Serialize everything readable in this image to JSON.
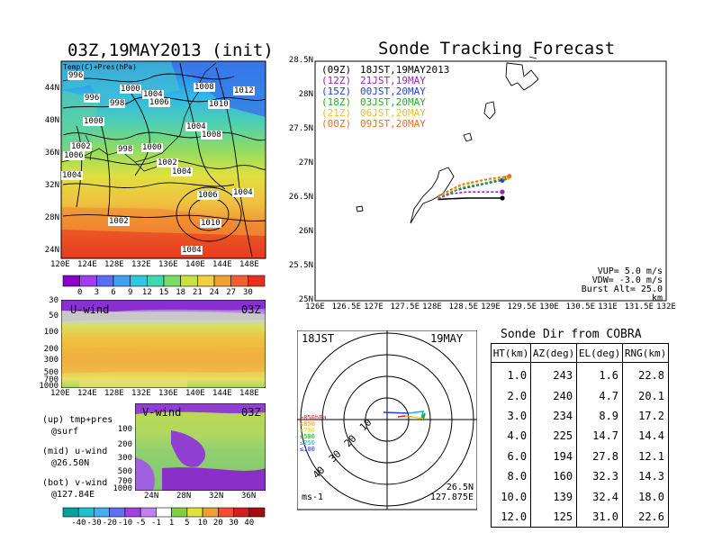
{
  "left": {
    "map_title": "03Z,19MAY2013 (init)",
    "map_label": "Temp(C)+Pres(hPa)",
    "isobars": [
      "996",
      "996",
      "1000",
      "1004",
      "998",
      "1006",
      "1008",
      "1012",
      "1010",
      "1004",
      "1008",
      "1000",
      "1002",
      "998",
      "1000",
      "1002",
      "1004",
      "1006",
      "1004",
      "1010",
      "1002",
      "1004",
      "1006",
      "1004"
    ],
    "lat_ticks": [
      "44N",
      "40N",
      "36N",
      "32N",
      "28N",
      "24N"
    ],
    "lon_ticks": [
      "120E",
      "124E",
      "128E",
      "132E",
      "136E",
      "140E",
      "144E",
      "148E"
    ],
    "colorbar_top": [
      "0",
      "3",
      "6",
      "9",
      "12",
      "15",
      "18",
      "21",
      "24",
      "27",
      "30"
    ],
    "colorbar_top_colors": [
      "#8a00c8",
      "#a13cf0",
      "#5a6cf0",
      "#3fa0f0",
      "#30c8e0",
      "#40d8b0",
      "#7adc64",
      "#c8e040",
      "#f0d040",
      "#f0a030",
      "#f06030",
      "#e83020"
    ],
    "uwind": {
      "label": "U-wind",
      "time": "03Z",
      "y_ticks": [
        "30",
        "50",
        "100",
        "200",
        "300",
        "500",
        "700",
        "1000"
      ],
      "x_ticks": [
        "120E",
        "124E",
        "128E",
        "132E",
        "136E",
        "140E",
        "144E",
        "148E"
      ]
    },
    "vwind": {
      "label": "V-wind",
      "time": "03Z",
      "y_ticks": [
        "100",
        "200",
        "300",
        "500",
        "700",
        "1000"
      ],
      "x_ticks": [
        "24N",
        "28N",
        "32N",
        "36N"
      ]
    },
    "notes": [
      {
        "a": "(up) tmp+pres",
        "b": "@surf"
      },
      {
        "a": "(mid) u-wind",
        "b": "@26.50N"
      },
      {
        "a": "(bot) v-wind",
        "b": "@127.84E"
      }
    ],
    "colorbar_bottom": [
      "-40",
      "-30",
      "-20",
      "-10",
      "-5",
      "-1",
      "1",
      "5",
      "10",
      "20",
      "30",
      "40"
    ],
    "colorbar_bottom_colors": [
      "#00a0a0",
      "#20c0d0",
      "#40b0f0",
      "#6070f0",
      "#a040e0",
      "#c080f0",
      "#ffffff",
      "#80d040",
      "#e0e040",
      "#f0a030",
      "#f05030",
      "#d02020",
      "#a01010"
    ]
  },
  "track": {
    "title": "Sonde Tracking Forecast",
    "legend": [
      {
        "code": "(09Z)",
        "label": "18JST,19MAY2013",
        "color": "#000000"
      },
      {
        "code": "(12Z)",
        "label": "21JST,19MAY",
        "color": "#a020c0"
      },
      {
        "code": "(15Z)",
        "label": "00JST,20MAY",
        "color": "#2040e0"
      },
      {
        "code": "(18Z)",
        "label": "03JST,20MAY",
        "color": "#20b020"
      },
      {
        "code": "(21Z)",
        "label": "06JST,20MAY",
        "color": "#f0c020"
      },
      {
        "code": "(00Z)",
        "label": "09JST,20MAY",
        "color": "#f07020"
      }
    ],
    "lat_ticks": [
      "28.5N",
      "28N",
      "27.5N",
      "27N",
      "26.5N",
      "26N",
      "25.5N",
      "25N"
    ],
    "lon_ticks": [
      "126E",
      "126.5E",
      "127E",
      "127.5E",
      "128E",
      "128.5E",
      "129E",
      "129.5E",
      "130E",
      "130.5E",
      "131E",
      "131.5E",
      "132E"
    ],
    "params": [
      "VUP= 5.0 m/s",
      "VDW= -3.0 m/s",
      "Burst Alt= 25.0 km"
    ]
  },
  "polar": {
    "local_time": "18JST",
    "date": "19MAY",
    "ring_labels": [
      "10",
      "20",
      "30",
      "40"
    ],
    "level_legend": [
      {
        "text": "≥850hPa",
        "color": "#e02020"
      },
      {
        "text": "≤850",
        "color": "#f0a020"
      },
      {
        "text": "≤700",
        "color": "#e0d020"
      },
      {
        "text": "≤500",
        "color": "#20b020"
      },
      {
        "text": "≤250",
        "color": "#20b0e0"
      },
      {
        "text": "≤100",
        "color": "#2040e0"
      }
    ],
    "unit": "ms-1",
    "pos_lat": "26.5N",
    "pos_lon": "127.875E"
  },
  "cobra": {
    "title": "Sonde Dir from COBRA",
    "headers": [
      "HT(km)",
      "AZ(deg)",
      "EL(deg)",
      "RNG(km)"
    ],
    "rows": [
      [
        "1.0",
        "243",
        "1.6",
        "22.8"
      ],
      [
        "2.0",
        "240",
        "4.7",
        "20.1"
      ],
      [
        "3.0",
        "234",
        "8.9",
        "17.2"
      ],
      [
        "4.0",
        "225",
        "14.7",
        "14.4"
      ],
      [
        "6.0",
        "194",
        "27.8",
        "12.1"
      ],
      [
        "8.0",
        "160",
        "32.3",
        "14.3"
      ],
      [
        "10.0",
        "139",
        "32.4",
        "18.0"
      ],
      [
        "12.0",
        "125",
        "31.0",
        "22.6"
      ]
    ]
  },
  "chart_data": [
    {
      "type": "line",
      "title": "Sonde Tracking Forecast",
      "xlabel": "",
      "ylabel": "",
      "xlim": [
        126,
        132
      ],
      "ylim": [
        25,
        28.5
      ],
      "series": [
        {
          "name": "(09Z) 18JST,19MAY2013",
          "x": [
            128.1,
            128.3,
            128.6,
            129.2
          ],
          "y": [
            26.48,
            26.49,
            26.5,
            26.5
          ]
        },
        {
          "name": "(12Z) 21JST,19MAY",
          "x": [
            128.1,
            128.3,
            128.6,
            129.2
          ],
          "y": [
            26.49,
            26.56,
            26.59,
            26.59
          ]
        },
        {
          "name": "(15Z) 00JST,20MAY",
          "x": [
            128.1,
            128.4,
            128.8,
            129.2
          ],
          "y": [
            26.5,
            26.61,
            26.69,
            26.76
          ]
        },
        {
          "name": "(18Z) 03JST,20MAY",
          "x": [
            128.1,
            128.5,
            128.9,
            129.25
          ],
          "y": [
            26.5,
            26.65,
            26.72,
            26.79
          ]
        },
        {
          "name": "(21Z) 06JST,20MAY",
          "x": [
            128.1,
            128.5,
            128.9,
            129.3
          ],
          "y": [
            26.52,
            26.68,
            26.76,
            26.8
          ]
        },
        {
          "name": "(00Z) 09JST,20MAY",
          "x": [
            128.1,
            128.5,
            128.95,
            129.32
          ],
          "y": [
            26.53,
            26.7,
            26.78,
            26.82
          ]
        }
      ]
    },
    {
      "type": "table",
      "title": "Sonde Dir from COBRA",
      "columns": [
        "HT(km)",
        "AZ(deg)",
        "EL(deg)",
        "RNG(km)"
      ],
      "rows": [
        [
          1.0,
          243,
          1.6,
          22.8
        ],
        [
          2.0,
          240,
          4.7,
          20.1
        ],
        [
          3.0,
          234,
          8.9,
          17.2
        ],
        [
          4.0,
          225,
          14.7,
          14.4
        ],
        [
          6.0,
          194,
          27.8,
          12.1
        ],
        [
          8.0,
          160,
          32.3,
          14.3
        ],
        [
          10.0,
          139,
          32.4,
          18.0
        ],
        [
          12.0,
          125,
          31.0,
          22.6
        ]
      ]
    }
  ]
}
